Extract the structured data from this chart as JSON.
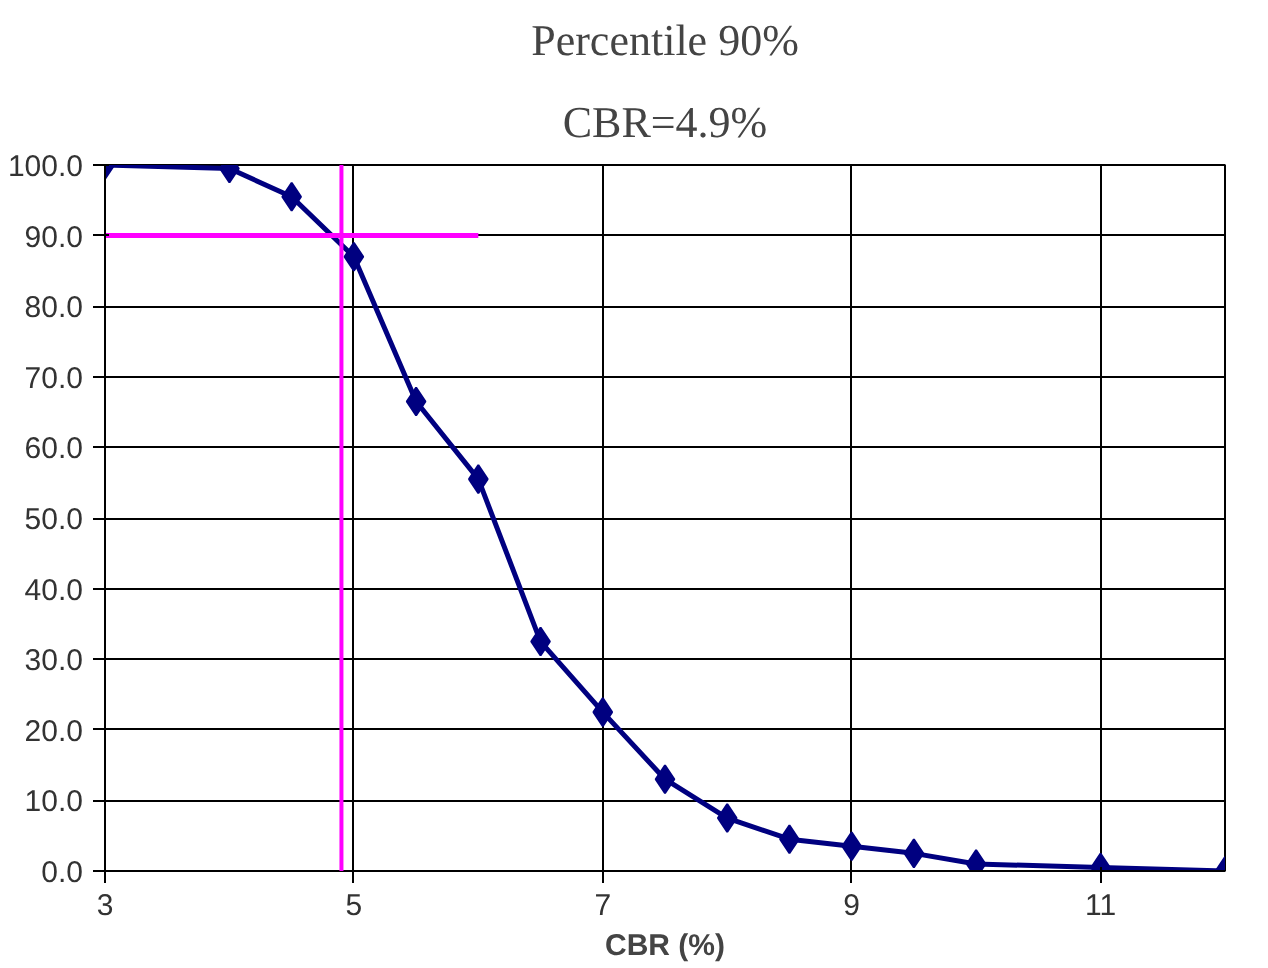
{
  "chart_data": {
    "type": "line",
    "title": "Percentile 90%",
    "subtitle": "CBR=4.9%",
    "xlabel": "CBR (%)",
    "xlim": [
      3,
      12
    ],
    "xticks": [
      3,
      5,
      7,
      9,
      11
    ],
    "ylim": [
      0,
      100
    ],
    "yticks": [
      {
        "value": 0,
        "label": "0.0"
      },
      {
        "value": 10,
        "label": "10.0"
      },
      {
        "value": 20,
        "label": "20.0"
      },
      {
        "value": 30,
        "label": "30.0"
      },
      {
        "value": 40,
        "label": "40.0"
      },
      {
        "value": 50,
        "label": "50.0"
      },
      {
        "value": 60,
        "label": "60.0"
      },
      {
        "value": 70,
        "label": "70.0"
      },
      {
        "value": 80,
        "label": "80.0"
      },
      {
        "value": 90,
        "label": "90.0"
      },
      {
        "value": 100,
        "label": "100.0"
      }
    ],
    "grid": true,
    "marker": "diamond",
    "line_style": "solid",
    "series": [
      {
        "color": "#000080",
        "x": [
          3,
          4,
          4.5,
          5,
          5.5,
          6,
          6.5,
          7,
          7.5,
          8,
          8.5,
          9,
          9.5,
          10,
          11,
          12
        ],
        "values": [
          100,
          99.5,
          95.5,
          87,
          66.5,
          55.5,
          32.5,
          22.5,
          13,
          7.5,
          4.5,
          3.5,
          2.5,
          1,
          0.5,
          0
        ]
      },
      {
        "color": "#ff00ff",
        "marker": "none",
        "x": [
          3,
          6
        ],
        "values": [
          90,
          90
        ]
      }
    ],
    "ref_lines": [
      {
        "axis": "x",
        "value": 4.9,
        "color": "#ff00ff"
      }
    ]
  }
}
